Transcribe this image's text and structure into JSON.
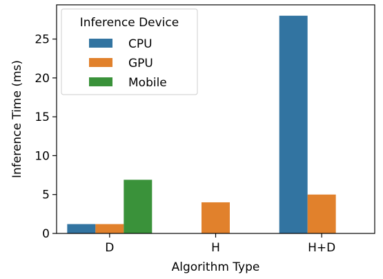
{
  "chart_data": {
    "type": "bar",
    "title": "",
    "xlabel": "Algorithm Type",
    "ylabel": "Inference Time (ms)",
    "categories": [
      "D",
      "H",
      "H+D"
    ],
    "ylim": [
      0,
      29.4
    ],
    "yticks": [
      0,
      5,
      10,
      15,
      20,
      25
    ],
    "grid": false,
    "legend": {
      "title": "Inference Device",
      "placement": "top-left"
    },
    "series": [
      {
        "name": "CPU",
        "color": "#3274a1",
        "values": [
          1.2,
          null,
          28.0
        ]
      },
      {
        "name": "GPU",
        "color": "#e1812c",
        "values": [
          1.2,
          4.0,
          5.0
        ]
      },
      {
        "name": "Mobile",
        "color": "#3a923a",
        "values": [
          6.9,
          null,
          null
        ]
      }
    ]
  }
}
